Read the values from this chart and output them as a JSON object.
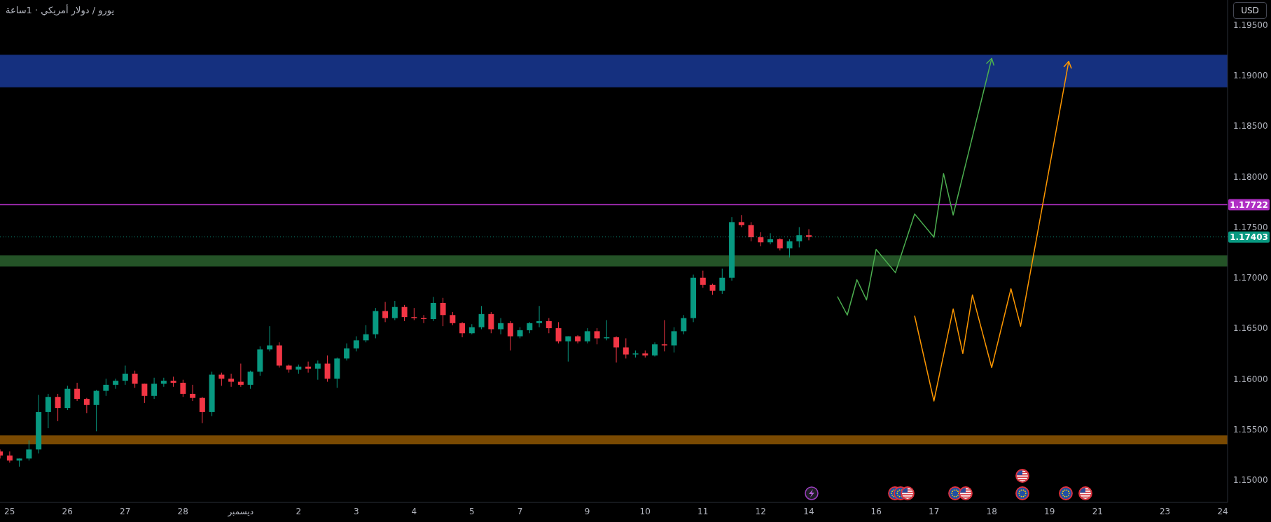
{
  "chart_data": {
    "type": "candlestick",
    "title": "يورو / دولار أمريكي · 1ساعة",
    "ylabel": "USD",
    "categories": [
      null,
      "25",
      null,
      null,
      null,
      null,
      null,
      "26",
      null,
      null,
      null,
      null,
      null,
      "27",
      null,
      null,
      null,
      null,
      null,
      "28",
      null,
      null,
      null,
      null,
      null,
      "ديسمبر",
      null,
      null,
      null,
      null,
      null,
      "2",
      null,
      null,
      null,
      null,
      null,
      "3",
      null,
      null,
      null,
      null,
      null,
      "4",
      null,
      null,
      null,
      null,
      null,
      "5",
      null,
      null,
      null,
      null,
      "7",
      null,
      null,
      null,
      null,
      null,
      null,
      "9",
      null,
      null,
      null,
      null,
      null,
      "10",
      null,
      null,
      null,
      null,
      null,
      "11",
      null,
      null,
      null,
      null,
      null,
      "12",
      null,
      null,
      null,
      null,
      "14",
      null,
      null,
      null,
      null,
      null,
      null,
      "16",
      null,
      null,
      null,
      null,
      null,
      "17",
      null,
      null,
      null,
      null,
      null,
      "18",
      null,
      null,
      null,
      null,
      null,
      "19",
      null,
      null,
      null,
      null,
      "21",
      null,
      null,
      null,
      null,
      null,
      null,
      "23",
      null,
      null,
      null,
      null,
      null,
      "24"
    ],
    "ohlc": [
      [
        1.1528,
        1.153,
        1.1521,
        1.1524
      ],
      [
        1.1524,
        1.1528,
        1.1517,
        1.1519
      ],
      [
        1.1519,
        1.1521,
        1.1513,
        1.1521
      ],
      [
        1.1521,
        1.1539,
        1.1519,
        1.153
      ],
      [
        1.153,
        1.1584,
        1.1526,
        1.1567
      ],
      [
        1.1567,
        1.1585,
        1.1551,
        1.1582
      ],
      [
        1.1582,
        1.1585,
        1.1558,
        1.1571
      ],
      [
        1.1571,
        1.1593,
        1.1569,
        1.159
      ],
      [
        1.159,
        1.1596,
        1.1578,
        1.158
      ],
      [
        1.158,
        1.1581,
        1.1566,
        1.1574
      ],
      [
        1.1574,
        1.1589,
        1.1548,
        1.1588
      ],
      [
        1.1588,
        1.16,
        1.1583,
        1.1594
      ],
      [
        1.1594,
        1.16,
        1.159,
        1.1598
      ],
      [
        1.1598,
        1.1613,
        1.1594,
        1.1605
      ],
      [
        1.1605,
        1.1608,
        1.1591,
        1.1595
      ],
      [
        1.1595,
        1.1595,
        1.1576,
        1.1583
      ],
      [
        1.1583,
        1.1601,
        1.158,
        1.1595
      ],
      [
        1.1595,
        1.1601,
        1.1592,
        1.1598
      ],
      [
        1.1598,
        1.1602,
        1.1592,
        1.1596
      ],
      [
        1.1596,
        1.1599,
        1.1582,
        1.1585
      ],
      [
        1.1585,
        1.1594,
        1.1578,
        1.1581
      ],
      [
        1.1581,
        1.1582,
        1.1556,
        1.1567
      ],
      [
        1.1567,
        1.1607,
        1.1563,
        1.1604
      ],
      [
        1.1604,
        1.1606,
        1.1593,
        1.16
      ],
      [
        1.16,
        1.1605,
        1.1592,
        1.1597
      ],
      [
        1.1597,
        1.1615,
        1.1592,
        1.1594
      ],
      [
        1.1594,
        1.1608,
        1.159,
        1.1607
      ],
      [
        1.1607,
        1.1632,
        1.1603,
        1.1629
      ],
      [
        1.1629,
        1.1652,
        1.1627,
        1.1633
      ],
      [
        1.1633,
        1.1636,
        1.1611,
        1.1613
      ],
      [
        1.1613,
        1.1614,
        1.1606,
        1.1609
      ],
      [
        1.1609,
        1.1614,
        1.1605,
        1.1612
      ],
      [
        1.1612,
        1.1617,
        1.1606,
        1.161
      ],
      [
        1.161,
        1.1618,
        1.1599,
        1.1615
      ],
      [
        1.1615,
        1.1623,
        1.1597,
        1.16
      ],
      [
        1.16,
        1.1621,
        1.1591,
        1.162
      ],
      [
        1.162,
        1.1635,
        1.1618,
        1.163
      ],
      [
        1.163,
        1.1642,
        1.1627,
        1.1638
      ],
      [
        1.1638,
        1.1653,
        1.1636,
        1.1644
      ],
      [
        1.1644,
        1.167,
        1.164,
        1.1667
      ],
      [
        1.1667,
        1.1676,
        1.1656,
        1.166
      ],
      [
        1.166,
        1.1677,
        1.1658,
        1.1671
      ],
      [
        1.1671,
        1.1673,
        1.1657,
        1.1661
      ],
      [
        1.1661,
        1.167,
        1.1658,
        1.166
      ],
      [
        1.166,
        1.1663,
        1.1655,
        1.1659
      ],
      [
        1.1659,
        1.1681,
        1.1657,
        1.1675
      ],
      [
        1.1675,
        1.168,
        1.1652,
        1.1663
      ],
      [
        1.1663,
        1.1666,
        1.1653,
        1.1655
      ],
      [
        1.1655,
        1.1656,
        1.1641,
        1.1645
      ],
      [
        1.1645,
        1.1654,
        1.1644,
        1.1651
      ],
      [
        1.1651,
        1.1672,
        1.1649,
        1.1664
      ],
      [
        1.1664,
        1.1666,
        1.1645,
        1.1649
      ],
      [
        1.1649,
        1.166,
        1.1644,
        1.1655
      ],
      [
        1.1655,
        1.1657,
        1.1628,
        1.1642
      ],
      [
        1.1642,
        1.1651,
        1.164,
        1.1648
      ],
      [
        1.1648,
        1.1656,
        1.1645,
        1.1655
      ],
      [
        1.1655,
        1.1672,
        1.1651,
        1.1657
      ],
      [
        1.1657,
        1.166,
        1.1645,
        1.165
      ],
      [
        1.165,
        1.1656,
        1.1635,
        1.1637
      ],
      [
        1.1637,
        1.1642,
        1.1617,
        1.1642
      ],
      [
        1.1642,
        1.1643,
        1.1635,
        1.1637
      ],
      [
        1.1637,
        1.165,
        1.1635,
        1.1647
      ],
      [
        1.1647,
        1.165,
        1.1634,
        1.164
      ],
      [
        1.164,
        1.1658,
        1.1638,
        1.1641
      ],
      [
        1.1641,
        1.1642,
        1.1616,
        1.1631
      ],
      [
        1.1631,
        1.164,
        1.162,
        1.1624
      ],
      [
        1.1624,
        1.1628,
        1.1621,
        1.1625
      ],
      [
        1.1625,
        1.1628,
        1.1621,
        1.1623
      ],
      [
        1.1623,
        1.1636,
        1.1622,
        1.1634
      ],
      [
        1.1634,
        1.1658,
        1.1627,
        1.1633
      ],
      [
        1.1633,
        1.1651,
        1.1626,
        1.1647
      ],
      [
        1.1647,
        1.1663,
        1.1644,
        1.166
      ],
      [
        1.166,
        1.1703,
        1.1656,
        1.17
      ],
      [
        1.17,
        1.1707,
        1.169,
        1.1693
      ],
      [
        1.1693,
        1.1694,
        1.1683,
        1.1687
      ],
      [
        1.1687,
        1.1709,
        1.1684,
        1.17
      ],
      [
        1.17,
        1.176,
        1.1697,
        1.1755
      ],
      [
        1.1755,
        1.1762,
        1.175,
        1.1752
      ],
      [
        1.1752,
        1.1755,
        1.1736,
        1.174
      ],
      [
        1.174,
        1.1745,
        1.1731,
        1.1735
      ],
      [
        1.1735,
        1.1744,
        1.1733,
        1.1738
      ],
      [
        1.1738,
        1.1739,
        1.1727,
        1.1729
      ],
      [
        1.1729,
        1.1738,
        1.172,
        1.1736
      ],
      [
        1.1736,
        1.175,
        1.173,
        1.1742
      ],
      [
        1.1742,
        1.1748,
        1.1737,
        1.17403
      ],
      null,
      null,
      null,
      null,
      null,
      null,
      null,
      null,
      null,
      null,
      null,
      null,
      null,
      null,
      null,
      null,
      null,
      null,
      null,
      null,
      null,
      null,
      null,
      null,
      null,
      null,
      null,
      null,
      null,
      null,
      null,
      null,
      null,
      null,
      null,
      null,
      null,
      null,
      null,
      null,
      null,
      null,
      null
    ],
    "colors": [
      "#f23645",
      "#f23645",
      "#089981",
      "#089981",
      "#089981",
      "#089981",
      "#f23645",
      "#089981",
      "#f23645",
      "#f23645",
      "#089981",
      "#089981",
      "#089981",
      "#089981",
      "#f23645",
      "#f23645",
      "#089981",
      "#089981",
      "#f23645",
      "#f23645",
      "#f23645",
      "#f23645",
      "#089981",
      "#f23645",
      "#f23645",
      "#f23645",
      "#089981",
      "#089981",
      "#089981",
      "#f23645",
      "#f23645",
      "#089981",
      "#f23645",
      "#089981",
      "#f23645",
      "#089981",
      "#089981",
      "#089981",
      "#089981",
      "#089981",
      "#f23645",
      "#089981",
      "#f23645",
      "#f23645",
      "#f23645",
      "#089981",
      "#f23645",
      "#f23645",
      "#f23645",
      "#089981",
      "#089981",
      "#f23645",
      "#089981",
      "#f23645",
      "#089981",
      "#089981",
      "#089981",
      "#f23645",
      "#f23645",
      "#089981",
      "#f23645",
      "#089981",
      "#f23645",
      "#089981",
      "#f23645",
      "#f23645",
      "#089981",
      "#f23645",
      "#089981",
      "#f23645",
      "#089981",
      "#089981",
      "#089981",
      "#f23645",
      "#f23645",
      "#089981",
      "#089981",
      "#f23645",
      "#f23645",
      "#f23645",
      "#089981",
      "#f23645",
      "#089981",
      "#089981",
      "#f23645",
      null,
      null,
      null,
      null,
      null,
      null,
      null,
      null,
      null,
      null,
      null,
      null,
      null,
      null,
      null,
      null,
      null,
      null,
      null,
      null,
      null,
      null,
      null,
      null,
      null,
      null,
      null,
      null,
      null,
      null,
      null,
      null,
      null,
      null,
      null,
      null,
      null,
      null,
      null,
      null,
      null,
      null,
      null
    ],
    "series": [
      {
        "type": "line",
        "color": "#4caf50",
        "values": [
          null,
          null,
          null,
          null,
          null,
          null,
          null,
          null,
          null,
          null,
          null,
          null,
          null,
          null,
          null,
          null,
          null,
          null,
          null,
          null,
          null,
          null,
          null,
          null,
          null,
          null,
          null,
          null,
          null,
          null,
          null,
          null,
          null,
          null,
          null,
          null,
          null,
          null,
          null,
          null,
          null,
          null,
          null,
          null,
          null,
          null,
          null,
          null,
          null,
          null,
          null,
          null,
          null,
          null,
          null,
          null,
          null,
          null,
          null,
          null,
          null,
          null,
          null,
          null,
          null,
          null,
          null,
          null,
          null,
          null,
          null,
          null,
          null,
          null,
          null,
          null,
          null,
          null,
          null,
          null,
          null,
          null,
          null,
          null,
          null,
          null,
          null,
          1.1681,
          1.1663,
          1.1698,
          1.1678,
          1.1728,
          null,
          1.1705,
          null,
          1.1763,
          null,
          1.174,
          1.1803,
          1.1762,
          null,
          null,
          null,
          1.1917,
          null,
          null,
          null,
          null,
          null,
          null,
          null,
          null,
          null,
          null,
          null,
          null,
          null,
          null,
          null,
          null,
          null,
          null,
          null,
          null,
          null,
          null,
          null,
          null
        ]
      },
      {
        "type": "line",
        "color": "#ff9800",
        "values": [
          null,
          null,
          null,
          null,
          null,
          null,
          null,
          null,
          null,
          null,
          null,
          null,
          null,
          null,
          null,
          null,
          null,
          null,
          null,
          null,
          null,
          null,
          null,
          null,
          null,
          null,
          null,
          null,
          null,
          null,
          null,
          null,
          null,
          null,
          null,
          null,
          null,
          null,
          null,
          null,
          null,
          null,
          null,
          null,
          null,
          null,
          null,
          null,
          null,
          null,
          null,
          null,
          null,
          null,
          null,
          null,
          null,
          null,
          null,
          null,
          null,
          null,
          null,
          null,
          null,
          null,
          null,
          null,
          null,
          null,
          null,
          null,
          null,
          null,
          null,
          null,
          null,
          null,
          null,
          null,
          null,
          null,
          null,
          null,
          null,
          null,
          null,
          null,
          null,
          null,
          null,
          null,
          null,
          null,
          null,
          1.1662,
          null,
          1.1578,
          null,
          1.1669,
          1.1625,
          1.1683,
          null,
          1.1611,
          null,
          1.1689,
          1.1652,
          null,
          null,
          null,
          null,
          1.1914,
          null,
          null,
          null,
          null,
          null,
          null,
          null,
          null,
          null,
          null,
          null,
          null,
          null,
          null,
          null,
          null
        ]
      }
    ],
    "ylim": [
      1.14776,
      1.19748
    ],
    "yticks": [
      {
        "value": 1.15,
        "label": "1.15000"
      },
      {
        "value": 1.155,
        "label": "1.15500"
      },
      {
        "value": 1.16,
        "label": "1.16000"
      },
      {
        "value": 1.165,
        "label": "1.16500"
      },
      {
        "value": 1.17,
        "label": "1.17000"
      },
      {
        "value": 1.175,
        "label": "1.17500"
      },
      {
        "value": 1.18,
        "label": "1.18000"
      },
      {
        "value": 1.185,
        "label": "1.18500"
      },
      {
        "value": 1.19,
        "label": "1.19000"
      },
      {
        "value": 1.195,
        "label": "1.19500"
      }
    ],
    "bands": [
      {
        "axis": "y",
        "from": 1.18884,
        "to": 1.19207,
        "color": "#15307f"
      },
      {
        "axis": "y",
        "from": 1.17112,
        "to": 1.1722,
        "color": "#245327"
      },
      {
        "axis": "y",
        "from": 1.15351,
        "to": 1.15439,
        "color": "#7a4a02"
      }
    ],
    "ref_lines": [
      {
        "axis": "y",
        "value": 1.17722,
        "label": "1.17722",
        "color": "#b02fc4"
      },
      {
        "axis": "y",
        "value": 1.17403,
        "label": "1.17403",
        "color": "#089981",
        "line_style": "dotted"
      }
    ]
  }
}
